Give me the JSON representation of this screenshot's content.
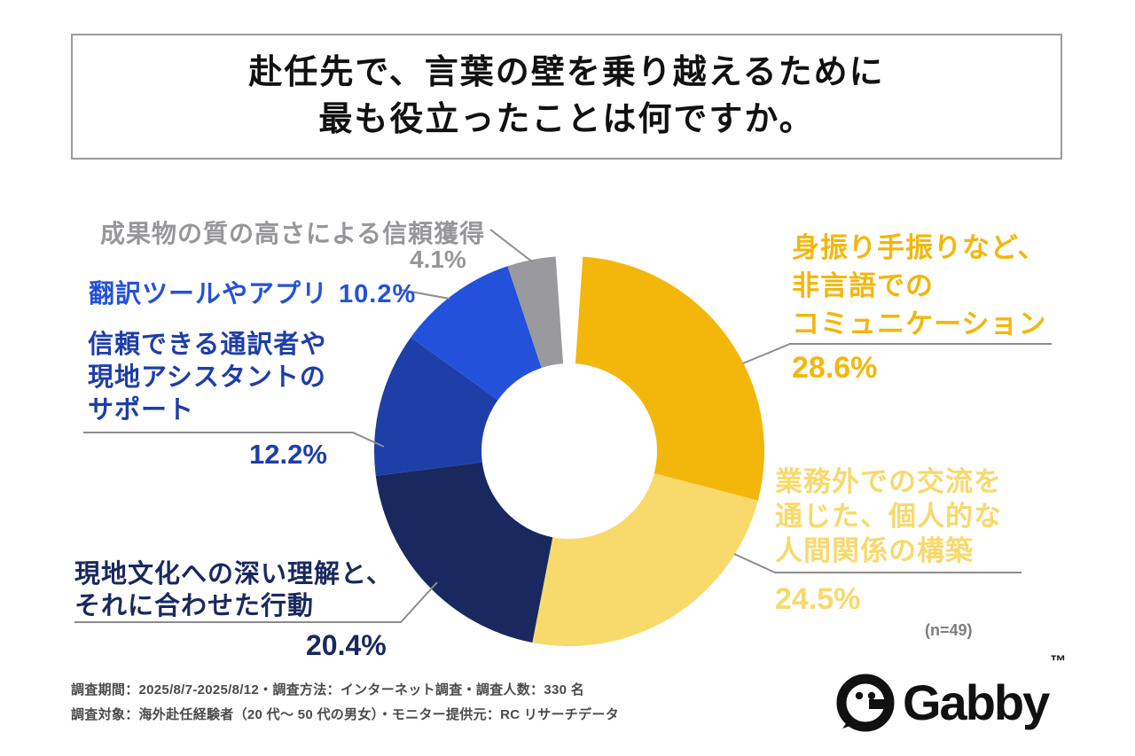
{
  "title": {
    "line1": "赴任先で、言葉の壁を乗り越えるために",
    "line2": "最も役立ったことは何ですか。"
  },
  "chart_data": {
    "type": "pie",
    "donut": true,
    "title": "赴任先で、言葉の壁を乗り越えるために最も役立ったことは何ですか。",
    "sample_note": "(n=49)",
    "start_angle_deg": -86,
    "gap_deg": 8,
    "segments": [
      {
        "label": "身振り手振りなど、非言語でのコミュニケーション",
        "value": 28.6,
        "color": "#F3B70B"
      },
      {
        "label": "業務外での交流を通じた、個人的な人間関係の構築",
        "value": 24.5,
        "color": "#F8D96C"
      },
      {
        "label": "現地文化への深い理解と、それに合わせた行動",
        "value": 20.4,
        "color": "#19295F"
      },
      {
        "label": "信頼できる通訳者や現地アシスタントのサポート",
        "value": 12.2,
        "color": "#1E3EA8"
      },
      {
        "label": "翻訳ツールやアプリ",
        "value": 10.2,
        "color": "#2451DB"
      },
      {
        "label": "成果物の質の高さによる信頼獲得",
        "value": 4.1,
        "color": "#9A9A9E"
      }
    ]
  },
  "labels": {
    "gesture": {
      "lines": [
        "身振り手振りなど、",
        "非言語での",
        "コミュニケーション"
      ],
      "pct": "28.6%"
    },
    "offwork": {
      "lines": [
        "業務外での交流を",
        "通じた、個人的な",
        "人間関係の構築"
      ],
      "pct": "24.5%"
    },
    "culture": {
      "lines": [
        "現地文化への深い理解と、",
        "それに合わせた行動"
      ],
      "pct": "20.4%"
    },
    "interpreter": {
      "lines": [
        "信頼できる通訳者や",
        "現地アシスタントの",
        "サポート"
      ],
      "pct": "12.2%"
    },
    "tools": {
      "text": "翻訳ツールやアプリ",
      "pct": "10.2%"
    },
    "quality": {
      "text": "成果物の質の高さによる信頼獲得",
      "pct": "4.1%"
    }
  },
  "footer": {
    "line1": "調査期間：2025/8/7-2025/8/12・調査方法：インターネット調査・調査人数：330 名",
    "line2": "調査対象：海外赴任経験者（20 代〜 50 代の男女）・モニター提供元：RC リサーチデータ"
  },
  "logo": {
    "text": "Gabby",
    "tm": "™"
  }
}
